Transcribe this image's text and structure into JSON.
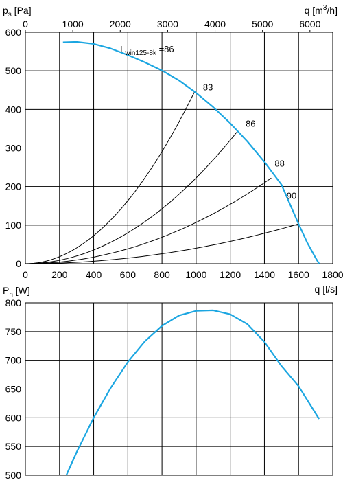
{
  "chart_data": [
    {
      "type": "line",
      "title": "",
      "xlabel": "q [l/s]",
      "ylabel_main": "p",
      "ylabel_sub": "s",
      "ylabel_unit": "[Pa]",
      "x2label_main": "q [m",
      "x2label_sup": "3",
      "x2label_tail": "/h]",
      "xlim": [
        0,
        1800
      ],
      "ylim": [
        0,
        600
      ],
      "x_ticks": [
        0,
        200,
        400,
        600,
        800,
        1000,
        1200,
        1400,
        1600,
        1800
      ],
      "y_ticks": [
        0,
        100,
        200,
        300,
        400,
        500,
        600
      ],
      "x2_ticks": [
        0,
        1000,
        2000,
        3000,
        4000,
        5000,
        6000
      ],
      "x2_factor": 3.6,
      "grid": true,
      "colors": {
        "fan_curve": "#1ba6e1",
        "system_curves": "#000000",
        "grid": "#000000"
      },
      "series": [
        {
          "x": [
            220,
            300,
            400,
            500,
            600,
            700,
            800,
            900,
            1000,
            1100,
            1200,
            1300,
            1400,
            1500,
            1600,
            1650,
            1700,
            1720
          ],
          "y": [
            574,
            575,
            570,
            558,
            541,
            522,
            501,
            475,
            443,
            406,
            364,
            317,
            264,
            205,
            103,
            55,
            15,
            0
          ]
        }
      ],
      "system_curves": [
        {
          "label": "83",
          "end": [
            990,
            445
          ]
        },
        {
          "label": "86",
          "end": [
            1240,
            342
          ]
        },
        {
          "label": "88",
          "end": [
            1440,
            222
          ]
        },
        {
          "label": "90",
          "end": [
            1600,
            103
          ]
        }
      ],
      "annotations": [
        {
          "main": "L",
          "sub": "win125-8k",
          "tail": " =86",
          "x": 555,
          "y": 548
        },
        {
          "main": "83",
          "x": 1040,
          "y": 450
        },
        {
          "main": "86",
          "x": 1290,
          "y": 355
        },
        {
          "main": "88",
          "x": 1460,
          "y": 252
        },
        {
          "main": "90",
          "x": 1530,
          "y": 168
        }
      ]
    },
    {
      "type": "line",
      "title": "",
      "xlabel": "",
      "ylabel_main": "P",
      "ylabel_sub": "n",
      "ylabel_unit": "[W]",
      "xlim": [
        0,
        1800
      ],
      "ylim": [
        500,
        800
      ],
      "y_ticks": [
        500,
        550,
        600,
        650,
        700,
        750,
        800
      ],
      "grid": true,
      "colors": {
        "line": "#1ba6e1"
      },
      "series": [
        {
          "x": [
            240,
            300,
            400,
            500,
            600,
            700,
            800,
            900,
            1000,
            1100,
            1200,
            1300,
            1400,
            1500,
            1600,
            1720
          ],
          "y": [
            500,
            540,
            600,
            652,
            697,
            733,
            760,
            778,
            786,
            787,
            780,
            763,
            732,
            690,
            655,
            598
          ]
        }
      ]
    }
  ]
}
